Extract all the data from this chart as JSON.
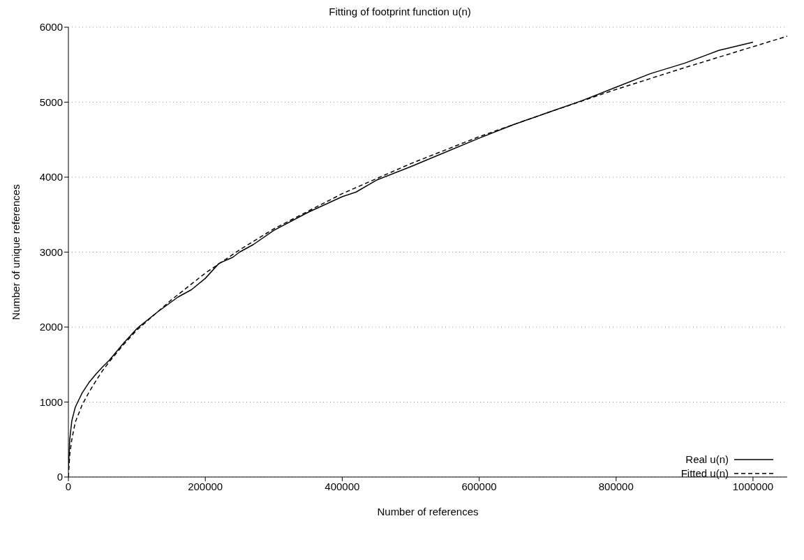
{
  "chart_data": {
    "type": "line",
    "title": "Fitting of footprint function u(n)",
    "xlabel": "Number of references",
    "ylabel": "Number of unique references",
    "xlim": [
      0,
      1050000
    ],
    "xticks": [
      0,
      200000,
      400000,
      600000,
      800000,
      1000000
    ],
    "ylim": [
      0,
      6000
    ],
    "yticks": [
      0,
      1000,
      2000,
      3000,
      4000,
      5000,
      6000
    ],
    "grid": "y",
    "legend": "bottom right",
    "marker": "none",
    "series": [
      {
        "name": "Real u(n)",
        "color": "#000000",
        "line_style": "solid",
        "x": [
          0,
          2000,
          5000,
          10000,
          20000,
          30000,
          40000,
          50000,
          60000,
          80000,
          100000,
          130000,
          160000,
          180000,
          200000,
          210000,
          220000,
          240000,
          250000,
          270000,
          300000,
          350000,
          400000,
          420000,
          450000,
          500000,
          550000,
          600000,
          650000,
          700000,
          750000,
          770000,
          800000,
          850000,
          900000,
          950000,
          1000000
        ],
        "values": [
          100,
          500,
          750,
          930,
          1120,
          1260,
          1370,
          1470,
          1560,
          1780,
          1980,
          2200,
          2400,
          2500,
          2650,
          2750,
          2850,
          2930,
          3000,
          3100,
          3290,
          3530,
          3740,
          3800,
          3960,
          4140,
          4330,
          4520,
          4700,
          4860,
          5020,
          5090,
          5200,
          5380,
          5520,
          5690,
          5800
        ]
      },
      {
        "name": "Fitted u(n)",
        "color": "#000000",
        "line_style": "dashed",
        "x": [
          0,
          2000,
          5000,
          10000,
          20000,
          30000,
          40000,
          50000,
          60000,
          80000,
          100000,
          150000,
          200000,
          250000,
          300000,
          400000,
          500000,
          600000,
          700000,
          800000,
          900000,
          1000000,
          1050000
        ],
        "values": [
          0,
          300,
          500,
          730,
          960,
          1130,
          1280,
          1420,
          1540,
          1760,
          1960,
          2360,
          2720,
          3030,
          3310,
          3780,
          4180,
          4540,
          4860,
          5170,
          5460,
          5740,
          5880
        ]
      }
    ]
  }
}
